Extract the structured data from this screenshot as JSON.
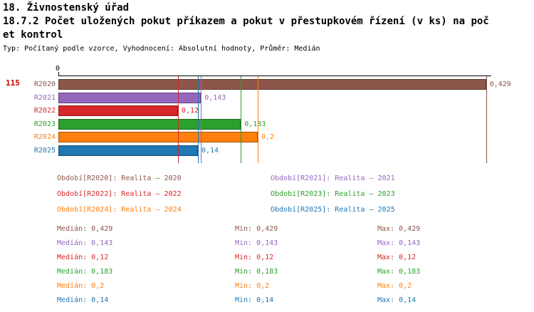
{
  "header": {
    "section_title": "18. Živnostenský úřad",
    "indicator_title": "18.7.2 Počet uložených pokut příkazem a pokut v přestupkovém řízení (v ks) na počet kontrol",
    "meta": "Typ: Počítaný podle vzorce, Vyhodnocení: Absolutní hodnoty, Průměr: Medián"
  },
  "chart_data": {
    "type": "bar",
    "orientation": "horizontal",
    "title": "18.7.2 Počet uložených pokut příkazem a pokut v přestupkovém řízení (v ks) na počet kontrol",
    "row_number": "115",
    "axis_origin_label": "0",
    "categories": [
      "R2020",
      "R2021",
      "R2022",
      "R2023",
      "R2024",
      "R2025"
    ],
    "values": [
      0.429,
      0.143,
      0.12,
      0.183,
      0.2,
      0.14
    ],
    "value_labels": [
      "0,429",
      "0,143",
      "0,12",
      "0,183",
      "0,2",
      "0,14"
    ],
    "colors": [
      "#8c564b",
      "#9467bd",
      "#d62728",
      "#2ca02c",
      "#ff7f0e",
      "#1f77b4"
    ],
    "median_lines": [
      0.429,
      0.143,
      0.12,
      0.183,
      0.2,
      0.14
    ],
    "xlim": [
      0,
      0.45
    ],
    "grid": false,
    "legend_position": "bottom"
  },
  "legend": {
    "items": [
      {
        "label": "Období[R2020]: Realita – 2020",
        "color": "#8c564b"
      },
      {
        "label": "Období[R2021]: Realita – 2021",
        "color": "#9467bd"
      },
      {
        "label": "Období[R2022]: Realita – 2022",
        "color": "#d62728"
      },
      {
        "label": "Období[R2023]: Realita – 2023",
        "color": "#2ca02c"
      },
      {
        "label": "Období[R2024]: Realita – 2024",
        "color": "#ff7f0e"
      },
      {
        "label": "Období[R2025]: Realita – 2025",
        "color": "#1f77b4"
      }
    ]
  },
  "stats": {
    "rows": [
      {
        "median": "Medián: 0,429",
        "min": "Min: 0,429",
        "max": "Max: 0,429",
        "color": "#8c564b"
      },
      {
        "median": "Medián: 0,143",
        "min": "Min: 0,143",
        "max": "Max: 0,143",
        "color": "#9467bd"
      },
      {
        "median": "Medián: 0,12",
        "min": "Min: 0,12",
        "max": "Max: 0,12",
        "color": "#d62728"
      },
      {
        "median": "Medián: 0,183",
        "min": "Min: 0,183",
        "max": "Max: 0,183",
        "color": "#2ca02c"
      },
      {
        "median": "Medián: 0,2",
        "min": "Min: 0,2",
        "max": "Max: 0,2",
        "color": "#ff7f0e"
      },
      {
        "median": "Medián: 0,14",
        "min": "Min: 0,14",
        "max": "Max: 0,14",
        "color": "#1f77b4"
      }
    ]
  },
  "accent": {
    "row_number_color": "#cc0000"
  }
}
